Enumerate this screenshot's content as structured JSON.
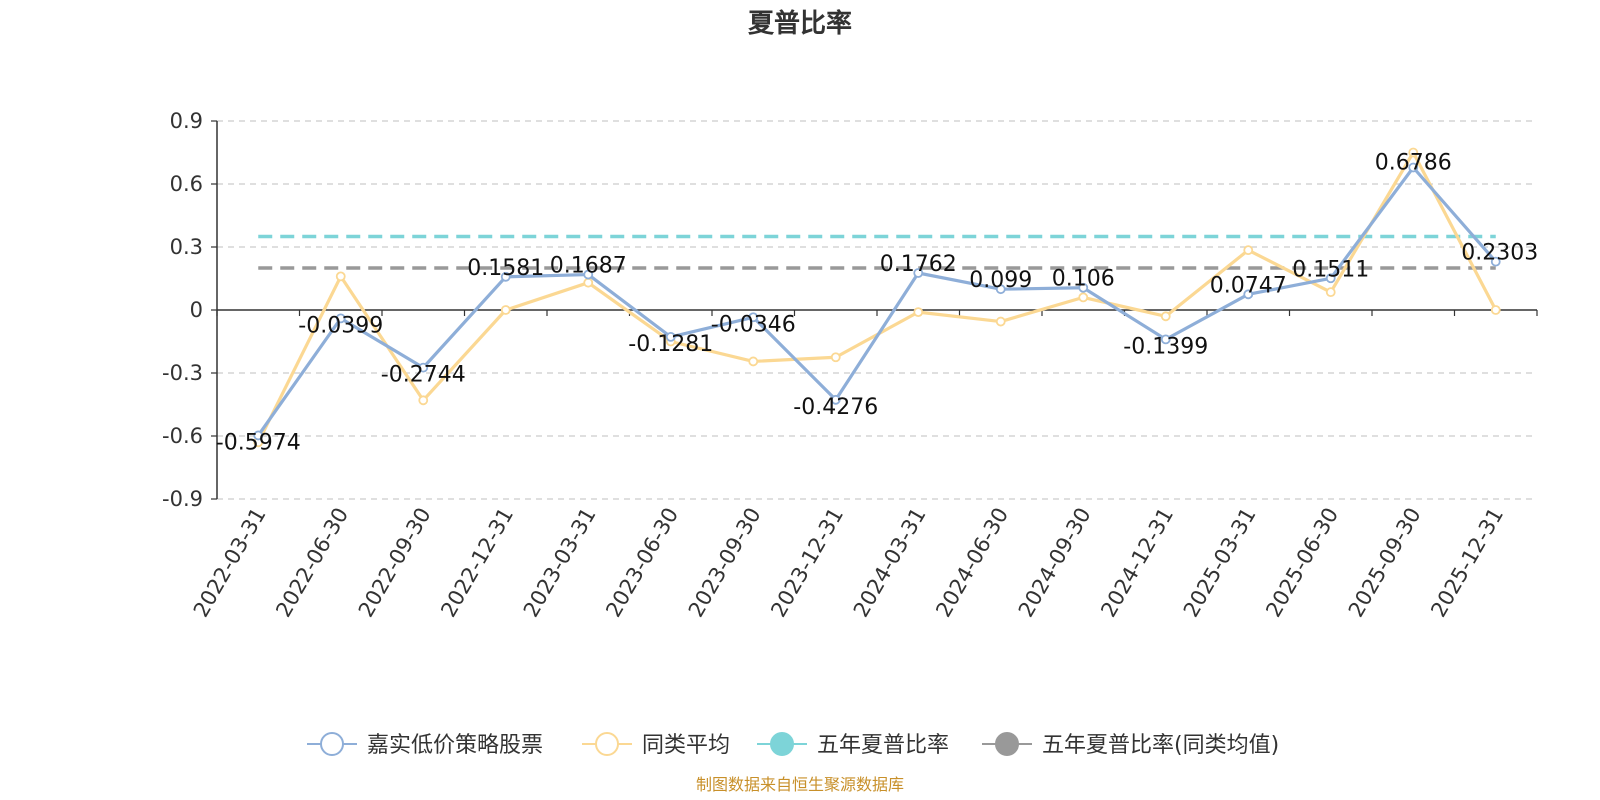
{
  "chart_data": {
    "type": "line",
    "title": "夏普比率",
    "categories": [
      "2022-03-31",
      "2022-06-30",
      "2022-09-30",
      "2022-12-31",
      "2023-03-31",
      "2023-06-30",
      "2023-09-30",
      "2023-12-31",
      "2024-03-31",
      "2024-06-30",
      "2024-09-30",
      "2024-12-31",
      "2025-03-31",
      "2025-06-30",
      "2025-09-30",
      "2025-12-31"
    ],
    "ylim": [
      -0.9,
      0.9
    ],
    "yticks": [
      -0.9,
      -0.6,
      -0.3,
      0,
      0.3,
      0.6,
      0.9
    ],
    "grid": true,
    "legend_position": "bottom",
    "series": [
      {
        "name": "嘉实低价策略股票",
        "color": "#8eaed8",
        "values": [
          -0.5974,
          -0.0399,
          -0.2744,
          0.1581,
          0.1687,
          -0.1281,
          -0.0346,
          -0.4276,
          0.1762,
          0.099,
          0.106,
          -0.1399,
          0.0747,
          0.1511,
          0.6786,
          0.2303
        ],
        "labels": [
          "-0.5974",
          "-0.0399",
          "-0.2744",
          "0.1581",
          "0.1687",
          "-0.1281",
          "-0.0346",
          "-0.4276",
          "0.1762",
          "0.099",
          "0.106",
          "-0.1399",
          "0.0747",
          "0.1511",
          "0.6786",
          "0.2303"
        ]
      },
      {
        "name": "同类平均",
        "color": "#fbd893",
        "values": [
          -0.63,
          0.16,
          -0.43,
          0.0,
          0.13,
          -0.15,
          -0.245,
          -0.225,
          -0.01,
          -0.055,
          0.06,
          -0.03,
          0.285,
          0.085,
          0.75,
          0.0
        ]
      },
      {
        "name": "五年夏普比率",
        "color": "#7dd4d8",
        "value": 0.35
      },
      {
        "name": "五年夏普比率(同类均值)",
        "color": "#999999",
        "value": 0.2
      }
    ],
    "source": "制图数据来自恒生聚源数据库"
  }
}
